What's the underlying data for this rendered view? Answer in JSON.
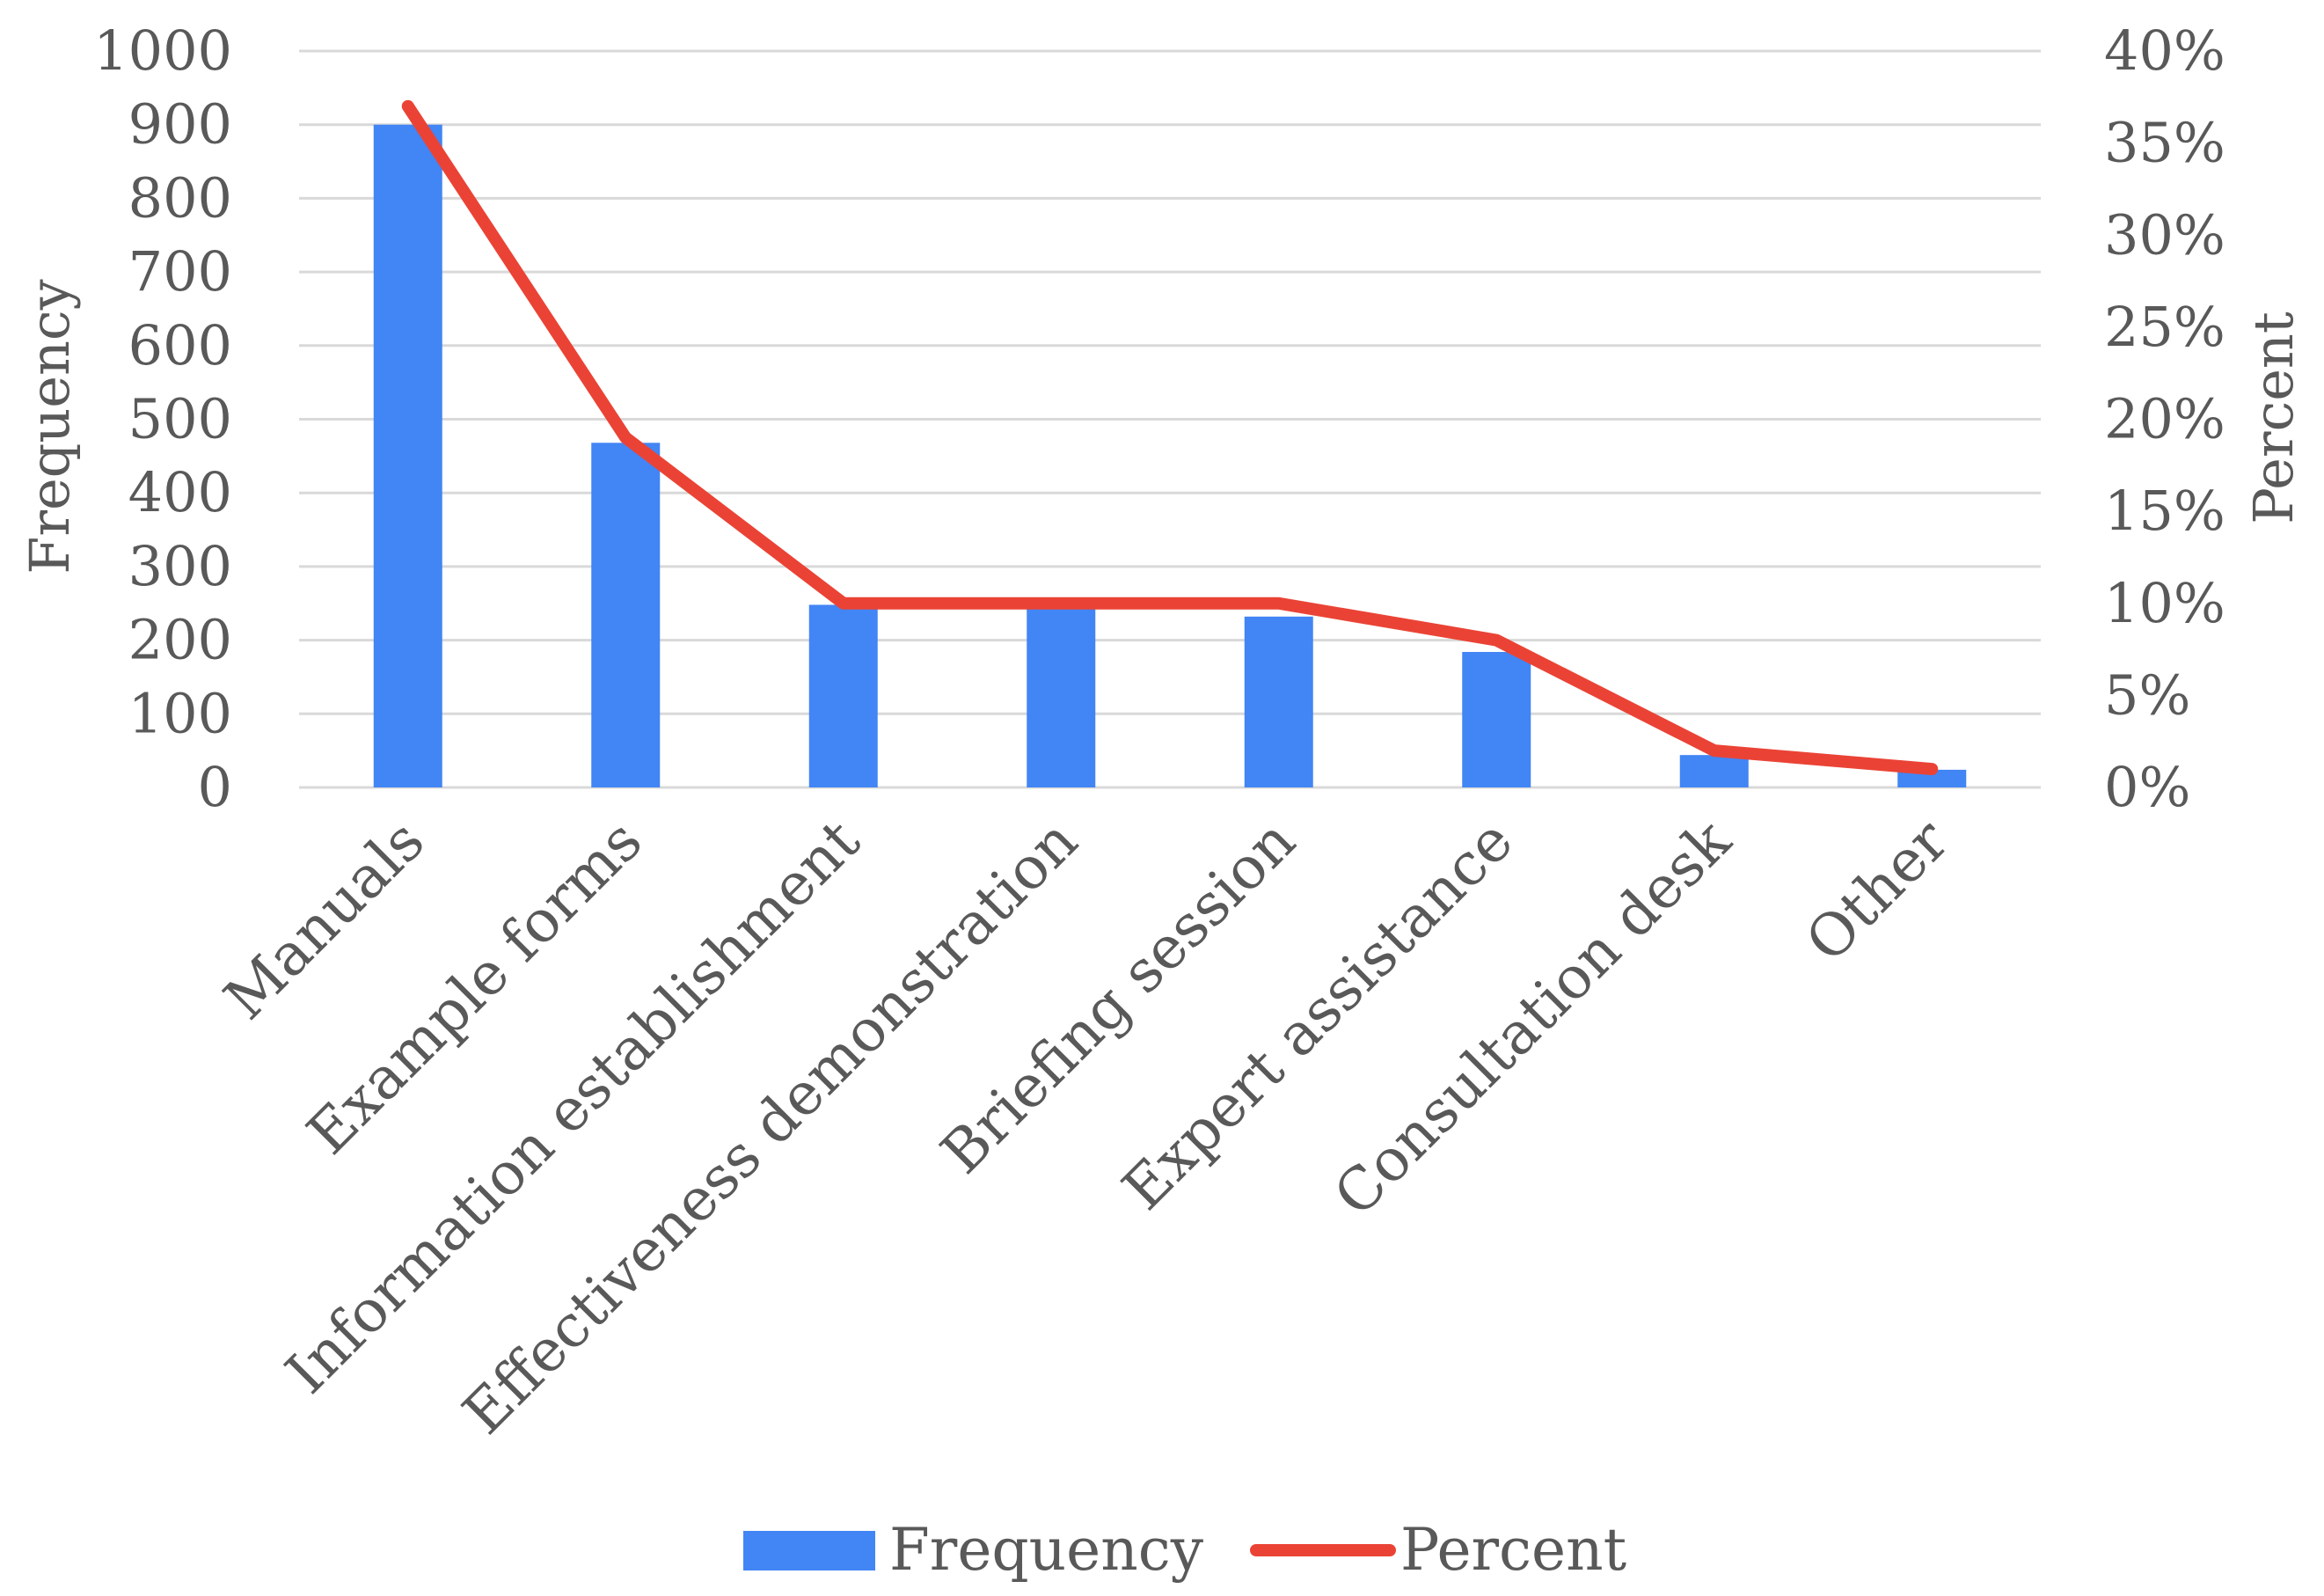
{
  "chart_data": {
    "type": "bar",
    "title": "",
    "categories": [
      "Manuals",
      "Example forms",
      "Information establishment",
      "Effectiveness demonstration",
      "Briefing session",
      "Expert assistance",
      "Consultation desk",
      "Other"
    ],
    "series": [
      {
        "name": "Frequency",
        "type": "bar",
        "axis": "left",
        "color": "#4285f4",
        "values": [
          900,
          468,
          248,
          248,
          232,
          184,
          44,
          24
        ]
      },
      {
        "name": "Percent",
        "type": "line",
        "axis": "right",
        "color": "#ea4335",
        "values": [
          37,
          19,
          10,
          10,
          10,
          8,
          2,
          1
        ]
      }
    ],
    "xlabel": "",
    "ylabel": "Frequency",
    "ylabel_right": "Percent",
    "ylim": [
      0,
      1000
    ],
    "ylim_right": [
      0,
      40
    ],
    "yticks": [
      "0",
      "100",
      "200",
      "300",
      "400",
      "500",
      "600",
      "700",
      "800",
      "900",
      "1000"
    ],
    "yticks_right": [
      "0%",
      "5%",
      "10%",
      "15%",
      "20%",
      "25%",
      "30%",
      "35%",
      "40%"
    ],
    "grid": true,
    "legend": {
      "position": "bottom",
      "entries": [
        "Frequency",
        "Percent"
      ]
    }
  }
}
